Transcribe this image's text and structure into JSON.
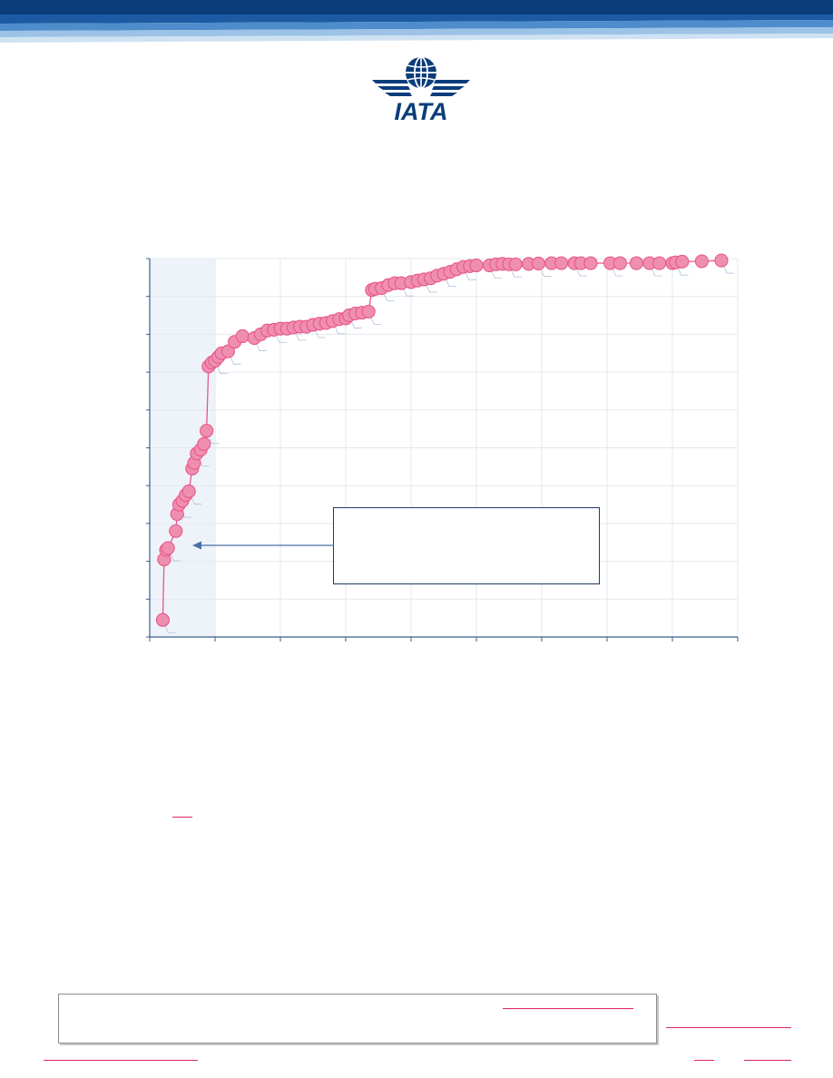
{
  "brand": {
    "logo_text": "IATA",
    "colors": {
      "navy": "#0b3d7a",
      "band_light": "#9cc3e6",
      "accent_pink": "#e8578a",
      "marker_fill": "#ef8fb0",
      "shade": "#eef3f9"
    }
  },
  "chart_data": {
    "type": "scatter",
    "xlim": [
      0,
      9
    ],
    "ylim": [
      0,
      10
    ],
    "grid": true,
    "shaded_x_range": [
      0,
      1
    ],
    "series": [
      {
        "values": [
          [
            0.2,
            0.45
          ],
          [
            0.22,
            2.05
          ],
          [
            0.25,
            2.3
          ],
          [
            0.28,
            2.35
          ],
          [
            0.4,
            2.8
          ],
          [
            0.42,
            3.25
          ],
          [
            0.45,
            3.5
          ],
          [
            0.5,
            3.6
          ],
          [
            0.55,
            3.75
          ],
          [
            0.6,
            3.85
          ],
          [
            0.65,
            4.45
          ],
          [
            0.68,
            4.6
          ],
          [
            0.72,
            4.85
          ],
          [
            0.78,
            4.95
          ],
          [
            0.83,
            5.1
          ],
          [
            0.87,
            5.45
          ],
          [
            0.9,
            7.15
          ],
          [
            0.95,
            7.25
          ],
          [
            1.0,
            7.3
          ],
          [
            1.05,
            7.4
          ],
          [
            1.1,
            7.5
          ],
          [
            1.2,
            7.55
          ],
          [
            1.3,
            7.8
          ],
          [
            1.42,
            7.95
          ],
          [
            1.6,
            7.9
          ],
          [
            1.7,
            8.0
          ],
          [
            1.8,
            8.1
          ],
          [
            1.9,
            8.12
          ],
          [
            2.0,
            8.15
          ],
          [
            2.1,
            8.15
          ],
          [
            2.2,
            8.18
          ],
          [
            2.3,
            8.2
          ],
          [
            2.4,
            8.2
          ],
          [
            2.5,
            8.25
          ],
          [
            2.6,
            8.28
          ],
          [
            2.7,
            8.3
          ],
          [
            2.8,
            8.35
          ],
          [
            2.9,
            8.4
          ],
          [
            3.0,
            8.42
          ],
          [
            3.05,
            8.5
          ],
          [
            3.15,
            8.55
          ],
          [
            3.25,
            8.57
          ],
          [
            3.35,
            8.6
          ],
          [
            3.4,
            9.17
          ],
          [
            3.45,
            9.2
          ],
          [
            3.55,
            9.22
          ],
          [
            3.65,
            9.3
          ],
          [
            3.75,
            9.35
          ],
          [
            3.85,
            9.35
          ],
          [
            4.0,
            9.38
          ],
          [
            4.1,
            9.42
          ],
          [
            4.2,
            9.45
          ],
          [
            4.3,
            9.48
          ],
          [
            4.4,
            9.55
          ],
          [
            4.5,
            9.6
          ],
          [
            4.6,
            9.65
          ],
          [
            4.7,
            9.72
          ],
          [
            4.8,
            9.78
          ],
          [
            4.9,
            9.8
          ],
          [
            5.0,
            9.82
          ],
          [
            5.2,
            9.82
          ],
          [
            5.3,
            9.85
          ],
          [
            5.4,
            9.86
          ],
          [
            5.5,
            9.85
          ],
          [
            5.6,
            9.85
          ],
          [
            5.8,
            9.86
          ],
          [
            5.95,
            9.87
          ],
          [
            6.15,
            9.88
          ],
          [
            6.3,
            9.88
          ],
          [
            6.5,
            9.88
          ],
          [
            6.6,
            9.88
          ],
          [
            6.75,
            9.88
          ],
          [
            7.05,
            9.88
          ],
          [
            7.2,
            9.88
          ],
          [
            7.45,
            9.88
          ],
          [
            7.65,
            9.88
          ],
          [
            7.8,
            9.88
          ],
          [
            8.0,
            9.88
          ],
          [
            8.05,
            9.9
          ],
          [
            8.15,
            9.92
          ],
          [
            8.45,
            9.93
          ],
          [
            8.75,
            9.95
          ]
        ]
      }
    ]
  }
}
